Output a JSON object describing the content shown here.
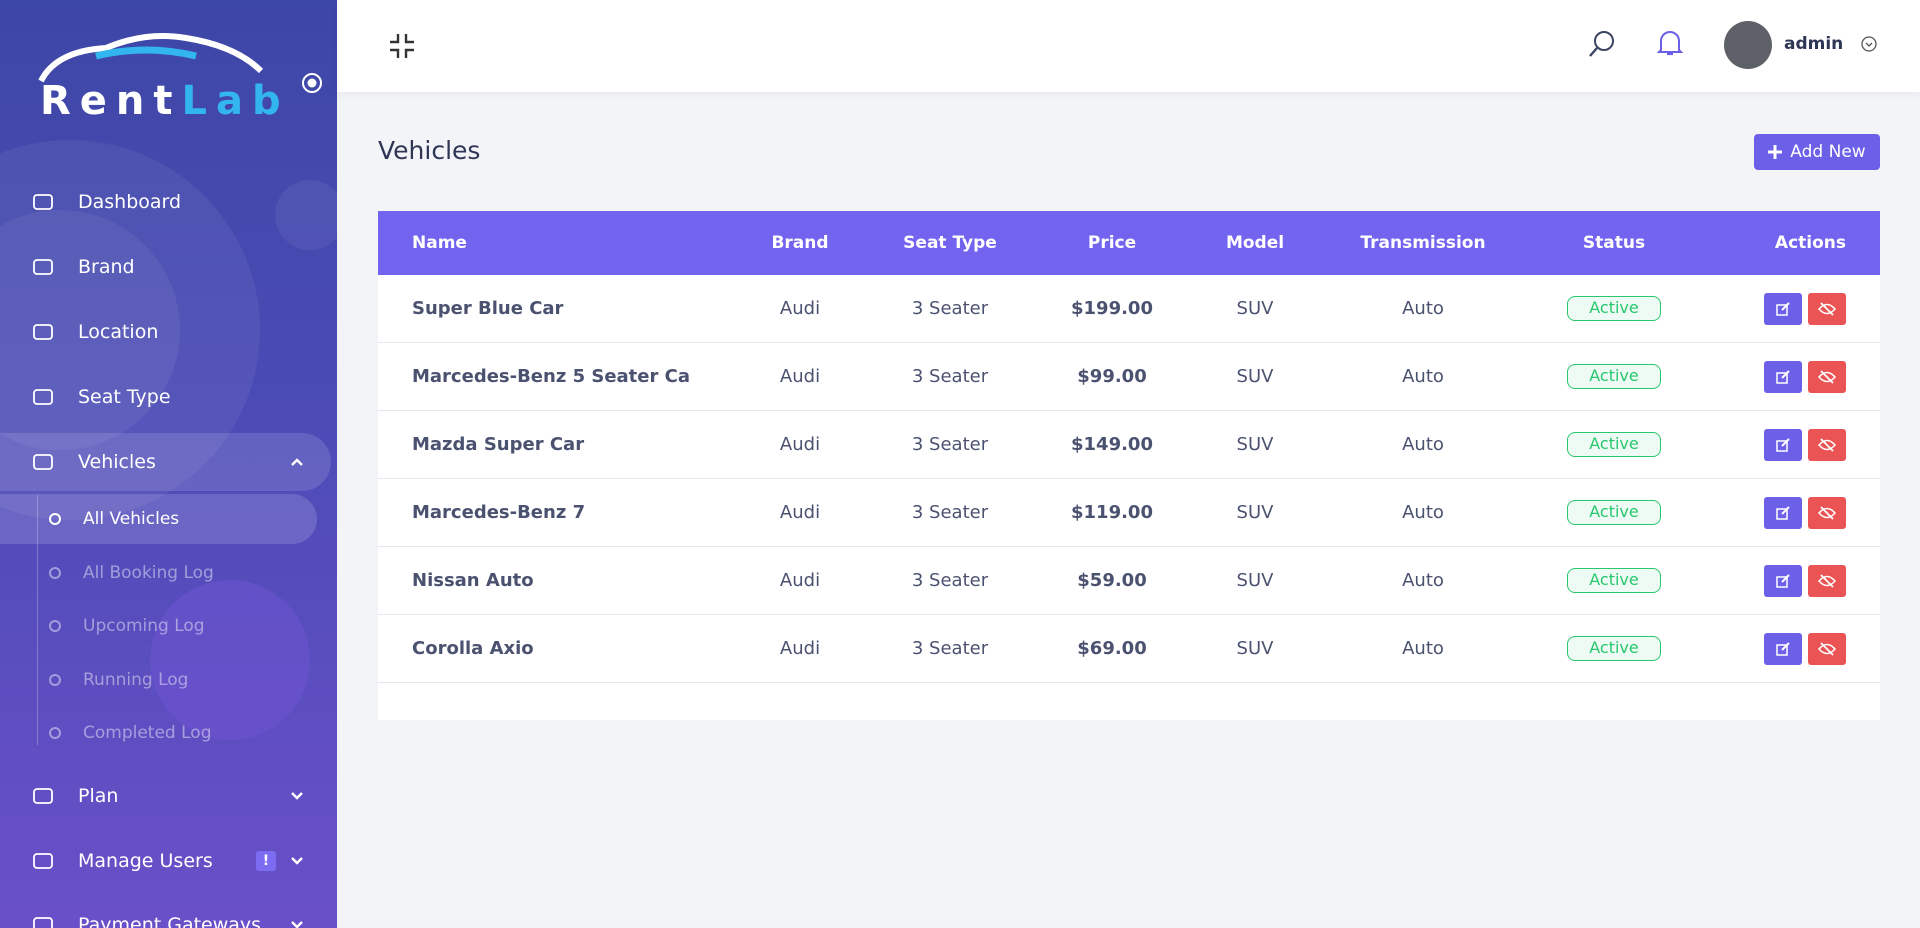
{
  "sidebar": {
    "logo": {
      "part1": "Rent",
      "part2": "Lab"
    },
    "menu": [
      {
        "label": "Dashboard"
      },
      {
        "label": "Brand"
      },
      {
        "label": "Location"
      },
      {
        "label": "Seat Type"
      },
      {
        "label": "Vehicles"
      },
      {
        "label": "Plan"
      },
      {
        "label": "Manage Users",
        "badge": "!"
      },
      {
        "label": "Payment Gateways"
      }
    ],
    "submenu": [
      "All Vehicles",
      "All Booking Log",
      "Upcoming Log",
      "Running Log",
      "Completed Log"
    ]
  },
  "header": {
    "user": "admin"
  },
  "page": {
    "title": "Vehicles",
    "button": "Add New"
  },
  "table": {
    "columns": [
      "Name",
      "Brand",
      "Seat Type",
      "Price",
      "Model",
      "Transmission",
      "Status",
      "Actions"
    ],
    "rows": [
      [
        "Super Blue Car",
        "Audi",
        "3 Seater",
        "$199.00",
        "SUV",
        "Auto",
        "Active"
      ],
      [
        "Marcedes-Benz 5 Seater Ca",
        "Audi",
        "3 Seater",
        "$99.00",
        "SUV",
        "Auto",
        "Active"
      ],
      [
        "Mazda Super Car",
        "Audi",
        "3 Seater",
        "$149.00",
        "SUV",
        "Auto",
        "Active"
      ],
      [
        "Marcedes-Benz 7",
        "Audi",
        "3 Seater",
        "$119.00",
        "SUV",
        "Auto",
        "Active"
      ],
      [
        "Nissan Auto",
        "Audi",
        "3 Seater",
        "$59.00",
        "SUV",
        "Auto",
        "Active"
      ],
      [
        "Corolla Axio",
        "Audi",
        "3 Seater",
        "$69.00",
        "SUV",
        "Auto",
        "Active"
      ]
    ]
  }
}
